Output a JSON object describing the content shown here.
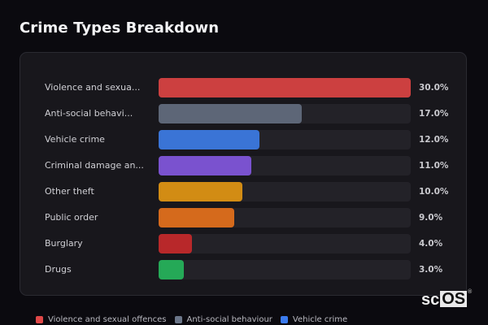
{
  "header": {
    "title": "Crime Types Breakdown"
  },
  "chart_data": {
    "type": "bar",
    "orientation": "horizontal",
    "title": "Crime Types Breakdown",
    "categories": [
      "Violence and sexual offences",
      "Anti-social behaviour",
      "Vehicle crime",
      "Criminal damage and arson",
      "Other theft",
      "Public order",
      "Burglary",
      "Drugs"
    ],
    "display_labels": [
      "Violence and sexua...",
      "Anti-social behavi...",
      "Vehicle crime",
      "Criminal damage an...",
      "Other theft",
      "Public order",
      "Burglary",
      "Drugs"
    ],
    "values": [
      30.0,
      17.0,
      12.0,
      11.0,
      10.0,
      9.0,
      4.0,
      3.0
    ],
    "value_labels": [
      "30.0%",
      "17.0%",
      "12.0%",
      "11.0%",
      "10.0%",
      "9.0%",
      "4.0%",
      "3.0%"
    ],
    "colors": [
      "#cc4040",
      "#5d6677",
      "#3a74d6",
      "#7a52cf",
      "#d28c14",
      "#d56a1c",
      "#b8282a",
      "#25a957"
    ],
    "unit": "%",
    "xlim": [
      0,
      30
    ],
    "grid": false,
    "legend_position": "bottom"
  },
  "rows": [
    {
      "label": "Violence and sexua...",
      "value": "30.0%",
      "pct": 30.0,
      "color": "#cc4040"
    },
    {
      "label": "Anti-social behavi...",
      "value": "17.0%",
      "pct": 17.0,
      "color": "#5d6677"
    },
    {
      "label": "Vehicle crime",
      "value": "12.0%",
      "pct": 12.0,
      "color": "#3a74d6"
    },
    {
      "label": "Criminal damage an...",
      "value": "11.0%",
      "pct": 11.0,
      "color": "#7a52cf"
    },
    {
      "label": "Other theft",
      "value": "10.0%",
      "pct": 10.0,
      "color": "#d28c14"
    },
    {
      "label": "Public order",
      "value": "9.0%",
      "pct": 9.0,
      "color": "#d56a1c"
    },
    {
      "label": "Burglary",
      "value": "4.0%",
      "pct": 4.0,
      "color": "#b8282a"
    },
    {
      "label": "Drugs",
      "value": "3.0%",
      "pct": 3.0,
      "color": "#25a957"
    }
  ],
  "legend": {
    "items": [
      {
        "label": "Violence and sexual offences",
        "color": "#e04848"
      },
      {
        "label": "Anti-social behaviour",
        "color": "#6b7689"
      },
      {
        "label": "Vehicle crime",
        "color": "#3b7bef"
      }
    ]
  },
  "watermark": {
    "left": "sc",
    "box": "OS",
    "mark": "®"
  }
}
